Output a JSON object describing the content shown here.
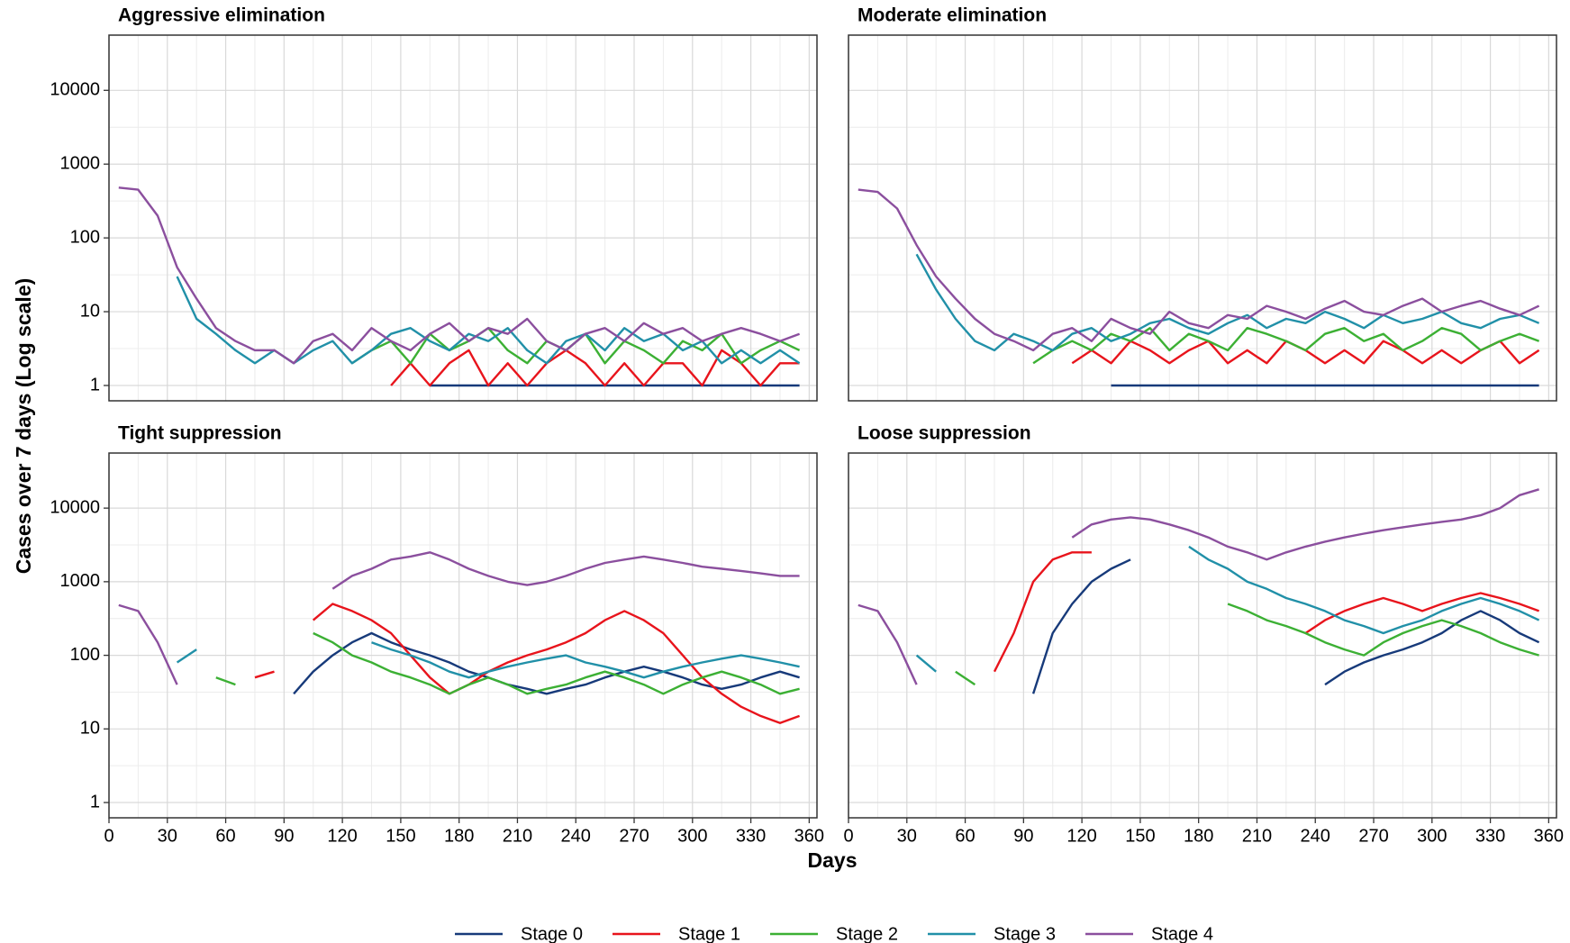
{
  "x_label": "Days",
  "y_label": "Cases over 7 days (Log scale)",
  "chart_data": [
    {
      "type": "line",
      "title": "Aggressive elimination",
      "log_y": true,
      "grid": true,
      "x": [
        5,
        15,
        25,
        35,
        45,
        55,
        65,
        75,
        85,
        95,
        105,
        115,
        125,
        135,
        145,
        155,
        165,
        175,
        185,
        195,
        205,
        215,
        225,
        235,
        245,
        255,
        265,
        275,
        285,
        295,
        305,
        315,
        325,
        335,
        345,
        355
      ],
      "xlim": [
        0,
        364
      ],
      "xticks": [
        0,
        30,
        60,
        90,
        120,
        150,
        180,
        210,
        240,
        270,
        300,
        330,
        360
      ],
      "ylim": [
        0.62,
        56000
      ],
      "yticks": [
        1,
        10,
        100,
        1000,
        10000
      ],
      "series": [
        {
          "name": "Stage 0",
          "color": "#173a7a",
          "values": [
            null,
            null,
            null,
            null,
            null,
            null,
            null,
            null,
            null,
            null,
            null,
            null,
            null,
            null,
            null,
            null,
            1,
            1,
            1,
            1,
            1,
            1,
            1,
            1,
            1,
            1,
            1,
            1,
            1,
            1,
            1,
            1,
            1,
            1,
            1,
            1
          ]
        },
        {
          "name": "Stage 1",
          "color": "#e8141c",
          "values": [
            null,
            null,
            null,
            null,
            null,
            null,
            null,
            null,
            null,
            null,
            null,
            null,
            null,
            null,
            1,
            2,
            1,
            2,
            3,
            1,
            2,
            1,
            2,
            3,
            2,
            1,
            2,
            1,
            2,
            2,
            1,
            3,
            2,
            1,
            2,
            2
          ]
        },
        {
          "name": "Stage 2",
          "color": "#3cb034",
          "values": [
            null,
            null,
            null,
            null,
            null,
            null,
            null,
            null,
            null,
            null,
            null,
            null,
            2,
            3,
            4,
            2,
            5,
            3,
            4,
            6,
            3,
            2,
            4,
            3,
            5,
            2,
            4,
            3,
            2,
            4,
            3,
            5,
            2,
            3,
            4,
            3
          ]
        },
        {
          "name": "Stage 3",
          "color": "#2190a8",
          "values": [
            null,
            null,
            null,
            30,
            8,
            5,
            3,
            2,
            3,
            2,
            3,
            4,
            2,
            3,
            5,
            6,
            4,
            3,
            5,
            4,
            6,
            3,
            2,
            4,
            5,
            3,
            6,
            4,
            5,
            3,
            4,
            2,
            3,
            2,
            3,
            2
          ]
        },
        {
          "name": "Stage 4",
          "color": "#8b4f9e",
          "values": [
            480,
            450,
            200,
            40,
            15,
            6,
            4,
            3,
            3,
            2,
            4,
            5,
            3,
            6,
            4,
            3,
            5,
            7,
            4,
            6,
            5,
            8,
            4,
            3,
            5,
            6,
            4,
            7,
            5,
            6,
            4,
            5,
            6,
            5,
            4,
            5
          ]
        }
      ]
    },
    {
      "type": "line",
      "title": "Moderate elimination",
      "log_y": true,
      "grid": true,
      "x": [
        5,
        15,
        25,
        35,
        45,
        55,
        65,
        75,
        85,
        95,
        105,
        115,
        125,
        135,
        145,
        155,
        165,
        175,
        185,
        195,
        205,
        215,
        225,
        235,
        245,
        255,
        265,
        275,
        285,
        295,
        305,
        315,
        325,
        335,
        345,
        355
      ],
      "xlim": [
        0,
        364
      ],
      "xticks": [
        0,
        30,
        60,
        90,
        120,
        150,
        180,
        210,
        240,
        270,
        300,
        330,
        360
      ],
      "ylim": [
        0.62,
        56000
      ],
      "yticks": [
        1,
        10,
        100,
        1000,
        10000
      ],
      "series": [
        {
          "name": "Stage 0",
          "color": "#173a7a",
          "values": [
            null,
            null,
            null,
            null,
            null,
            null,
            null,
            null,
            null,
            null,
            null,
            null,
            null,
            1,
            1,
            1,
            1,
            1,
            1,
            1,
            1,
            1,
            1,
            1,
            1,
            1,
            1,
            1,
            1,
            1,
            1,
            1,
            1,
            1,
            1,
            1
          ]
        },
        {
          "name": "Stage 1",
          "color": "#e8141c",
          "values": [
            null,
            null,
            null,
            null,
            null,
            null,
            null,
            null,
            null,
            null,
            null,
            2,
            3,
            2,
            4,
            3,
            2,
            3,
            4,
            2,
            3,
            2,
            4,
            3,
            2,
            3,
            2,
            4,
            3,
            2,
            3,
            2,
            3,
            4,
            2,
            3
          ]
        },
        {
          "name": "Stage 2",
          "color": "#3cb034",
          "values": [
            null,
            null,
            null,
            null,
            null,
            null,
            null,
            null,
            null,
            2,
            3,
            4,
            3,
            5,
            4,
            6,
            3,
            5,
            4,
            3,
            6,
            5,
            4,
            3,
            5,
            6,
            4,
            5,
            3,
            4,
            6,
            5,
            3,
            4,
            5,
            4
          ]
        },
        {
          "name": "Stage 3",
          "color": "#2190a8",
          "values": [
            null,
            null,
            null,
            60,
            20,
            8,
            4,
            3,
            5,
            4,
            3,
            5,
            6,
            4,
            5,
            7,
            8,
            6,
            5,
            7,
            9,
            6,
            8,
            7,
            10,
            8,
            6,
            9,
            7,
            8,
            10,
            7,
            6,
            8,
            9,
            7
          ]
        },
        {
          "name": "Stage 4",
          "color": "#8b4f9e",
          "values": [
            450,
            420,
            250,
            80,
            30,
            15,
            8,
            5,
            4,
            3,
            5,
            6,
            4,
            8,
            6,
            5,
            10,
            7,
            6,
            9,
            8,
            12,
            10,
            8,
            11,
            14,
            10,
            9,
            12,
            15,
            10,
            12,
            14,
            11,
            9,
            12
          ]
        }
      ]
    },
    {
      "type": "line",
      "title": "Tight suppression",
      "log_y": true,
      "grid": true,
      "x": [
        5,
        15,
        25,
        35,
        45,
        55,
        65,
        75,
        85,
        95,
        105,
        115,
        125,
        135,
        145,
        155,
        165,
        175,
        185,
        195,
        205,
        215,
        225,
        235,
        245,
        255,
        265,
        275,
        285,
        295,
        305,
        315,
        325,
        335,
        345,
        355
      ],
      "xlim": [
        0,
        364
      ],
      "xticks": [
        0,
        30,
        60,
        90,
        120,
        150,
        180,
        210,
        240,
        270,
        300,
        330,
        360
      ],
      "ylim": [
        0.62,
        56000
      ],
      "yticks": [
        1,
        10,
        100,
        1000,
        10000
      ],
      "series": [
        {
          "name": "Stage 0",
          "color": "#173a7a",
          "values": [
            null,
            null,
            null,
            null,
            null,
            null,
            null,
            null,
            null,
            30,
            60,
            100,
            150,
            200,
            150,
            120,
            100,
            80,
            60,
            50,
            40,
            35,
            30,
            35,
            40,
            50,
            60,
            70,
            60,
            50,
            40,
            35,
            40,
            50,
            60,
            50
          ]
        },
        {
          "name": "Stage 1",
          "color": "#e8141c",
          "values": [
            null,
            null,
            null,
            null,
            null,
            null,
            null,
            50,
            60,
            null,
            300,
            500,
            400,
            300,
            200,
            100,
            50,
            30,
            40,
            60,
            80,
            100,
            120,
            150,
            200,
            300,
            400,
            300,
            200,
            100,
            50,
            30,
            20,
            15,
            12,
            15
          ]
        },
        {
          "name": "Stage 2",
          "color": "#3cb034",
          "values": [
            null,
            null,
            null,
            null,
            null,
            50,
            40,
            null,
            null,
            null,
            200,
            150,
            100,
            80,
            60,
            50,
            40,
            30,
            40,
            50,
            40,
            30,
            35,
            40,
            50,
            60,
            50,
            40,
            30,
            40,
            50,
            60,
            50,
            40,
            30,
            35
          ]
        },
        {
          "name": "Stage 3",
          "color": "#2190a8",
          "values": [
            null,
            null,
            null,
            80,
            120,
            null,
            null,
            null,
            null,
            null,
            null,
            null,
            null,
            150,
            120,
            100,
            80,
            60,
            50,
            60,
            70,
            80,
            90,
            100,
            80,
            70,
            60,
            50,
            60,
            70,
            80,
            90,
            100,
            90,
            80,
            70
          ]
        },
        {
          "name": "Stage 4",
          "color": "#8b4f9e",
          "values": [
            480,
            400,
            150,
            40,
            null,
            null,
            null,
            null,
            null,
            null,
            null,
            800,
            1200,
            1500,
            2000,
            2200,
            2500,
            2000,
            1500,
            1200,
            1000,
            900,
            1000,
            1200,
            1500,
            1800,
            2000,
            2200,
            2000,
            1800,
            1600,
            1500,
            1400,
            1300,
            1200,
            1200
          ]
        }
      ]
    },
    {
      "type": "line",
      "title": "Loose suppression",
      "log_y": true,
      "grid": true,
      "x": [
        5,
        15,
        25,
        35,
        45,
        55,
        65,
        75,
        85,
        95,
        105,
        115,
        125,
        135,
        145,
        155,
        165,
        175,
        185,
        195,
        205,
        215,
        225,
        235,
        245,
        255,
        265,
        275,
        285,
        295,
        305,
        315,
        325,
        335,
        345,
        355
      ],
      "xlim": [
        0,
        364
      ],
      "xticks": [
        0,
        30,
        60,
        90,
        120,
        150,
        180,
        210,
        240,
        270,
        300,
        330,
        360
      ],
      "ylim": [
        0.62,
        56000
      ],
      "yticks": [
        1,
        10,
        100,
        1000,
        10000
      ],
      "series": [
        {
          "name": "Stage 0",
          "color": "#173a7a",
          "values": [
            null,
            null,
            null,
            null,
            null,
            null,
            null,
            null,
            null,
            30,
            200,
            500,
            1000,
            1500,
            2000,
            null,
            null,
            null,
            null,
            null,
            null,
            null,
            null,
            null,
            40,
            60,
            80,
            100,
            120,
            150,
            200,
            300,
            400,
            300,
            200,
            150
          ]
        },
        {
          "name": "Stage 1",
          "color": "#e8141c",
          "values": [
            null,
            null,
            null,
            null,
            null,
            null,
            null,
            60,
            200,
            1000,
            2000,
            2500,
            2500,
            null,
            null,
            null,
            null,
            null,
            null,
            null,
            null,
            null,
            null,
            200,
            300,
            400,
            500,
            600,
            500,
            400,
            500,
            600,
            700,
            600,
            500,
            400
          ]
        },
        {
          "name": "Stage 2",
          "color": "#3cb034",
          "values": [
            null,
            null,
            null,
            null,
            null,
            60,
            40,
            null,
            null,
            null,
            null,
            null,
            null,
            null,
            null,
            null,
            null,
            null,
            null,
            500,
            400,
            300,
            250,
            200,
            150,
            120,
            100,
            150,
            200,
            250,
            300,
            250,
            200,
            150,
            120,
            100
          ]
        },
        {
          "name": "Stage 3",
          "color": "#2190a8",
          "values": [
            null,
            null,
            null,
            100,
            60,
            null,
            null,
            null,
            null,
            null,
            null,
            null,
            null,
            null,
            null,
            null,
            null,
            3000,
            2000,
            1500,
            1000,
            800,
            600,
            500,
            400,
            300,
            250,
            200,
            250,
            300,
            400,
            500,
            600,
            500,
            400,
            300
          ]
        },
        {
          "name": "Stage 4",
          "color": "#8b4f9e",
          "values": [
            480,
            400,
            150,
            40,
            null,
            null,
            null,
            null,
            null,
            null,
            null,
            4000,
            6000,
            7000,
            7500,
            7000,
            6000,
            5000,
            4000,
            3000,
            2500,
            2000,
            2500,
            3000,
            3500,
            4000,
            4500,
            5000,
            5500,
            6000,
            6500,
            7000,
            8000,
            10000,
            15000,
            18000
          ]
        }
      ]
    }
  ]
}
